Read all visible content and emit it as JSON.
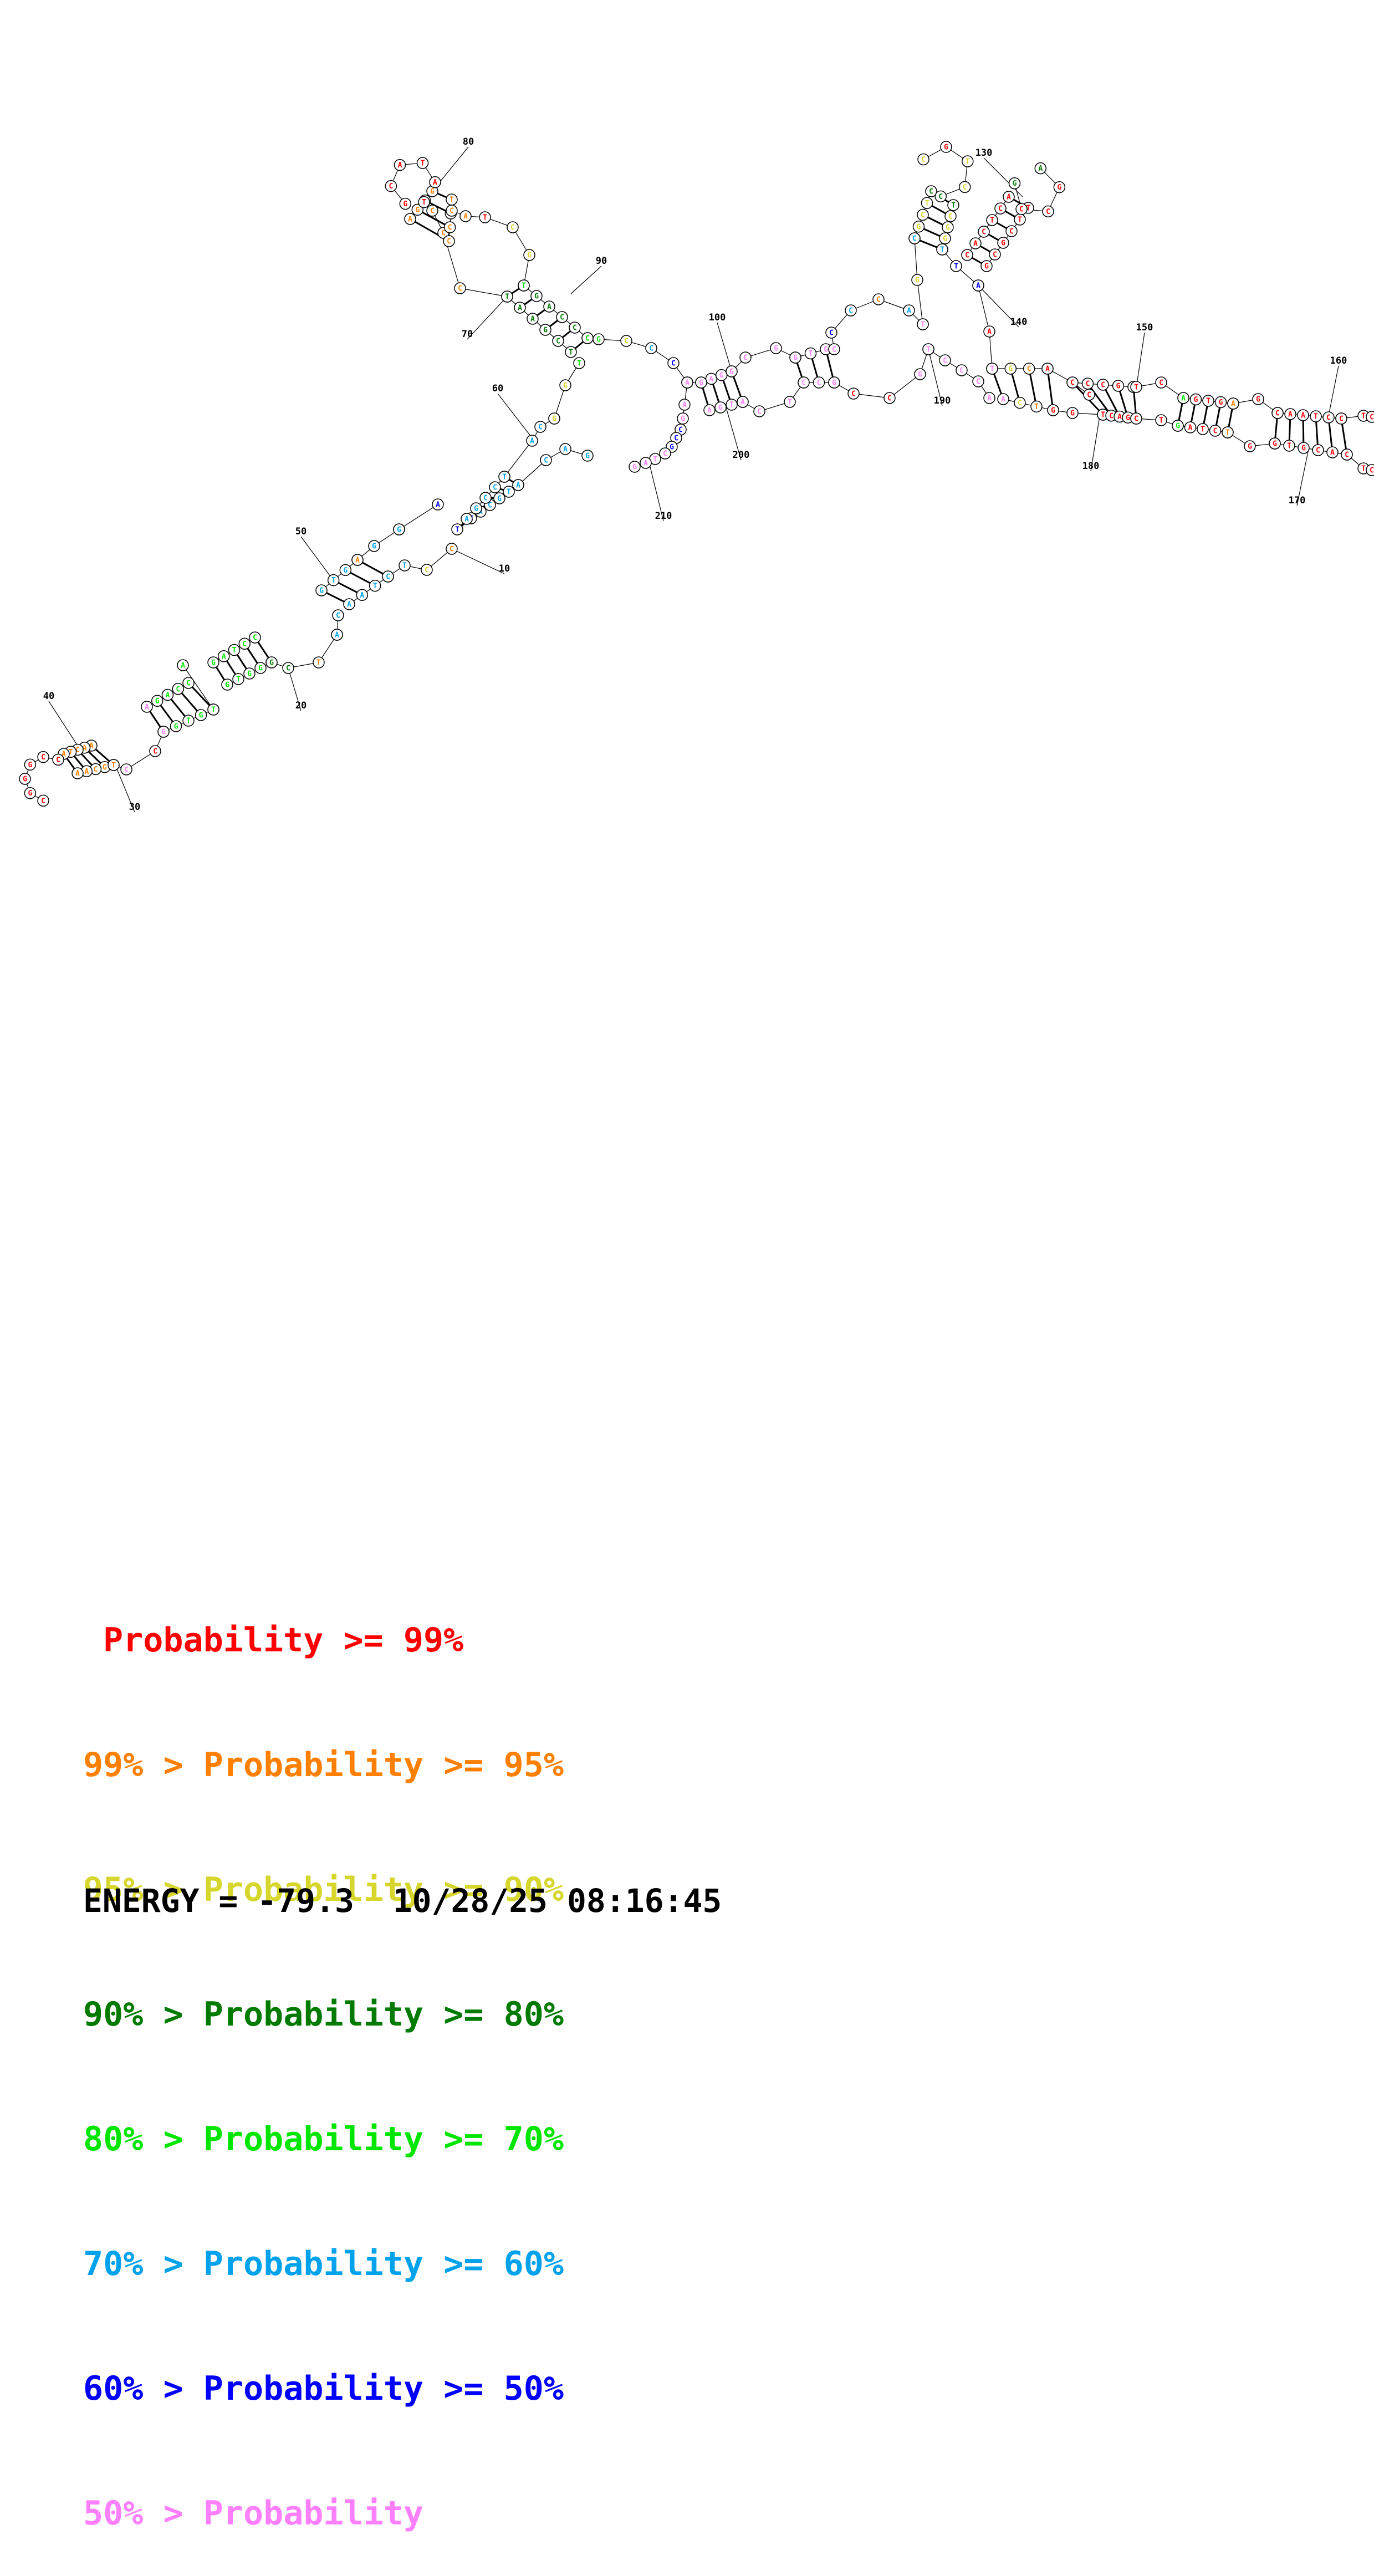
{
  "colors": {
    "p99": "#ff0000",
    "p95": "#ff8000",
    "p90": "#d6d62c",
    "p80": "#007a00",
    "p70": "#00e600",
    "p60": "#00a2ec",
    "p50": "#0000ff",
    "plow": "#ff80ff"
  },
  "legend": [
    {
      "prefix": "",
      "label": "Probability",
      "suffix": ">= 99%",
      "color": "p99"
    },
    {
      "prefix": "99% >",
      "label": "Probability",
      "suffix": ">= 95%",
      "color": "p95"
    },
    {
      "prefix": "95% >",
      "label": "Probability",
      "suffix": ">= 90%",
      "color": "p90"
    },
    {
      "prefix": "90% >",
      "label": "Probability",
      "suffix": ">= 80%",
      "color": "p80"
    },
    {
      "prefix": "80% >",
      "label": "Probability",
      "suffix": ">= 70%",
      "color": "p70"
    },
    {
      "prefix": "70% >",
      "label": "Probability",
      "suffix": ">= 60%",
      "color": "p60"
    },
    {
      "prefix": "60% >",
      "label": "Probability",
      "suffix": ">= 50%",
      "color": "p50"
    },
    {
      "prefix": "50% >",
      "label": "Probability",
      "suffix": "",
      "color": "plow"
    }
  ],
  "energy_line": "ENERGY = -79.3  10/28/25 08:16:45",
  "position_labels": [
    "10",
    "20",
    "30",
    "40",
    "50",
    "60",
    "70",
    "80",
    "90",
    "100",
    "130",
    "140",
    "150",
    "160",
    "170",
    "180",
    "190",
    "200",
    "210"
  ],
  "structure": {
    "sequence_visible": "ATAGCCTAAACCGGGCTCCCAGGGATCGCTTAGGATTGCGCAGCTGACGATAGTCCAGGCTCCTCAAGCCGCTAGGATACCACAGGGTTAAGAAGCCCTTTCCCACGCCTGTTATACGCATCGTCGCCCCTAAGGTCCCGGCGAACTGGCTCGGCCCCAGGCCGCTGGCCGGCGTCCTCCTGCTTCCGACCGTCCTATGCCGAAACTCCC"
  }
}
